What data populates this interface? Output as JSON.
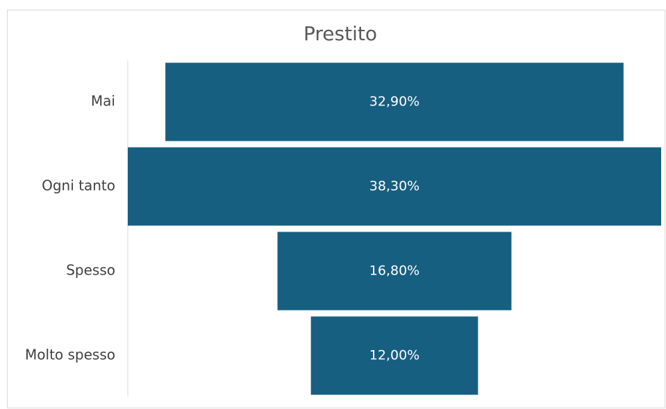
{
  "chart_data": {
    "type": "funnel",
    "title": "Prestito",
    "categories": [
      "Mai",
      "Ogni tanto",
      "Spesso",
      "Molto spesso"
    ],
    "values": [
      32.9,
      38.3,
      16.8,
      12.0
    ],
    "value_labels": [
      "32,90%",
      "38,30%",
      "16,80%",
      "12,00%"
    ],
    "color": "#175f80"
  }
}
